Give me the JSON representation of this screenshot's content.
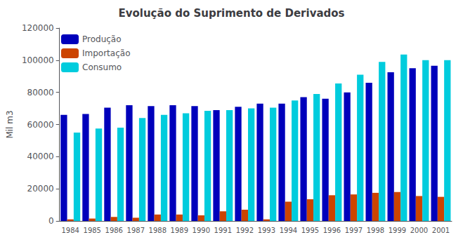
{
  "chart_data": {
    "type": "bar",
    "title": "Evolução do Suprimento de Derivados",
    "ylabel": "Mil m3",
    "categories": [
      "1984",
      "1985",
      "1986",
      "1987",
      "1988",
      "1989",
      "1990",
      "1991",
      "1992",
      "1993",
      "1994",
      "1995",
      "1996",
      "1997",
      "1998",
      "1999",
      "2000",
      "2001"
    ],
    "series": [
      {
        "name": "Produção",
        "color": "#0000BB",
        "values": [
          66000,
          66500,
          70500,
          72000,
          71500,
          72000,
          71500,
          69000,
          71000,
          73000,
          73000,
          77000,
          76000,
          80000,
          86000,
          92500,
          95000,
          96500
        ]
      },
      {
        "name": "Importação",
        "color": "#CC4400",
        "values": [
          1000,
          1500,
          2500,
          2000,
          4000,
          4000,
          3500,
          6000,
          7000,
          1000,
          12000,
          13500,
          16000,
          16500,
          17500,
          18000,
          15500,
          15000
        ]
      },
      {
        "name": "Consumo",
        "color": "#00CCDD",
        "values": [
          55000,
          57500,
          58000,
          64000,
          66000,
          67000,
          68500,
          69000,
          70000,
          70500,
          75000,
          79000,
          85500,
          91000,
          99000,
          103500,
          100000,
          100000
        ]
      }
    ],
    "ylim": [
      0,
      120000
    ],
    "yticks": [
      0,
      20000,
      40000,
      60000,
      80000,
      100000,
      120000
    ],
    "grid": false,
    "legend": "upper left"
  }
}
